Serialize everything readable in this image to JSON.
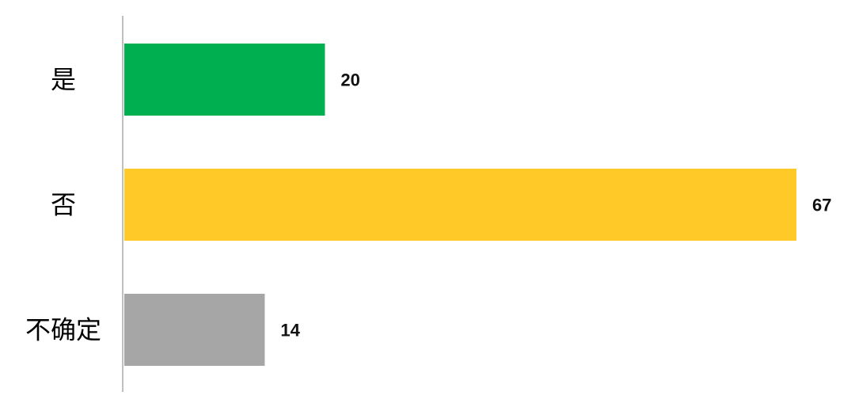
{
  "chart_data": {
    "type": "bar",
    "orientation": "horizontal",
    "categories": [
      "是",
      "否",
      "不确定"
    ],
    "values": [
      20,
      67,
      14
    ],
    "colors": [
      "#00B050",
      "#FFCA28",
      "#A6A6A6"
    ],
    "title": "",
    "xlabel": "",
    "ylabel": "",
    "xlim": [
      0,
      67
    ],
    "grid": false,
    "data_labels": true
  }
}
